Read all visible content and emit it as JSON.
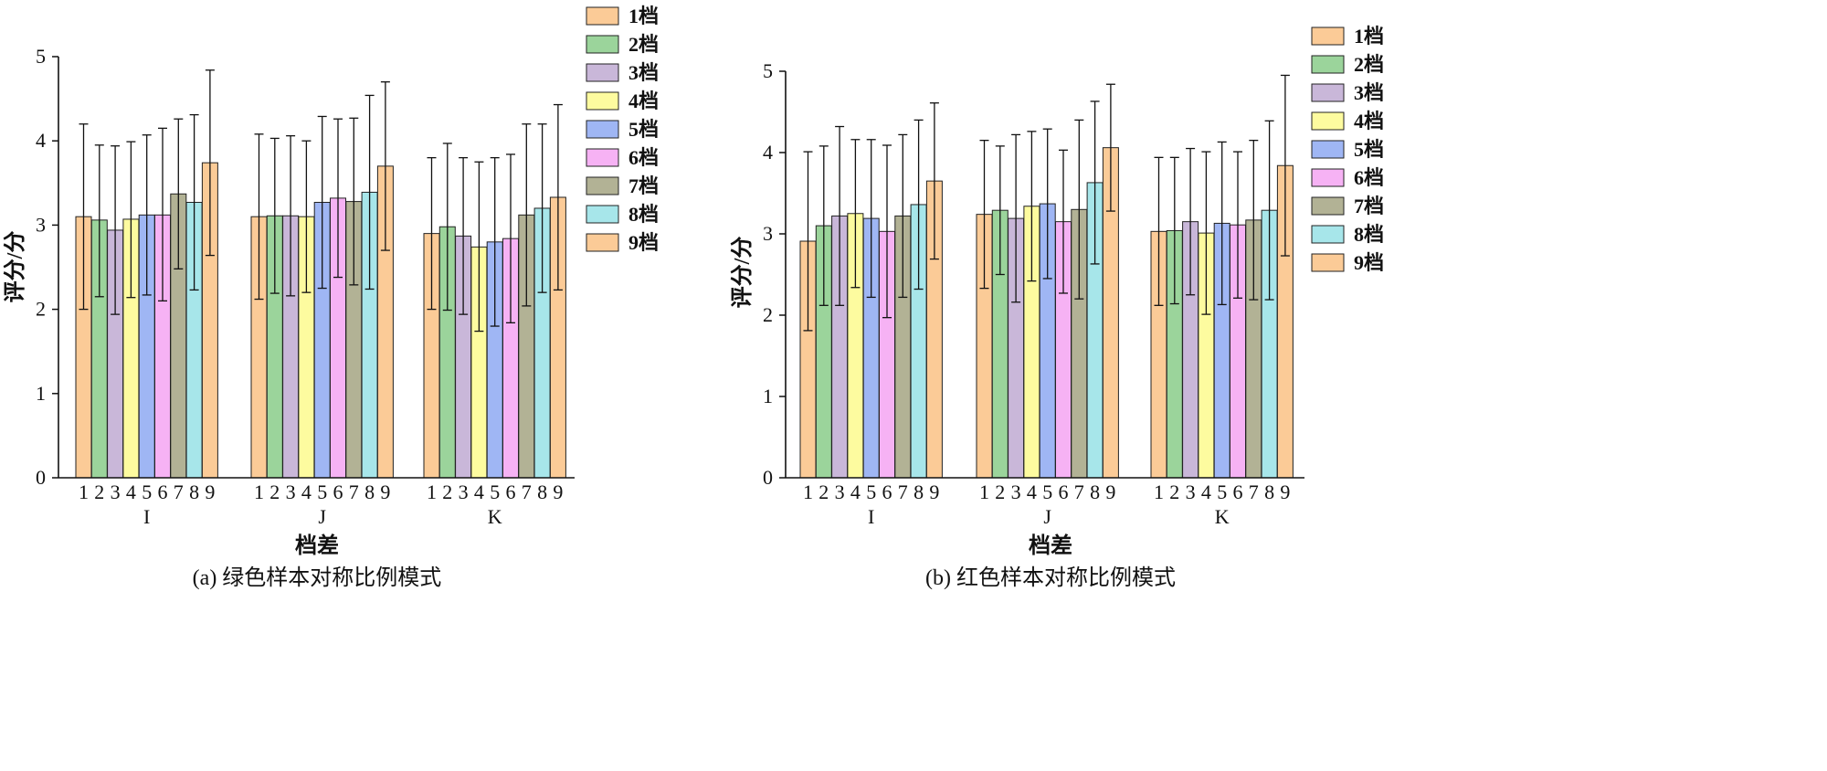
{
  "colors": [
    "#FBCB97",
    "#9BD49B",
    "#C9B7D9",
    "#FDFB9F",
    "#9FB6F4",
    "#F6B2F4",
    "#B2B295",
    "#A7E6EA",
    "#FBCB97"
  ],
  "chart_data": [
    {
      "type": "bar",
      "title": "",
      "caption": "(a)  绿色样本对称比例模式",
      "xlabel": "档差",
      "ylabel": "评分/分",
      "ylim": [
        0,
        5
      ],
      "yticks": [
        "0",
        "1",
        "2",
        "3",
        "4",
        "5"
      ],
      "groups": [
        "I",
        "J",
        "K"
      ],
      "bar_ticks": [
        "1",
        "2",
        "3",
        "4",
        "5",
        "6",
        "7",
        "8",
        "9"
      ],
      "legend_position": "top-right",
      "series": [
        {
          "name": "1档",
          "values": [
            3.1,
            3.1,
            2.9
          ],
          "error_up": [
            1.1,
            0.98,
            0.9
          ],
          "error_down": [
            1.1,
            0.98,
            0.9
          ]
        },
        {
          "name": "2档",
          "values": [
            3.06,
            3.11,
            2.98
          ],
          "error_up": [
            0.89,
            0.92,
            0.99
          ],
          "error_down": [
            0.91,
            0.92,
            0.99
          ]
        },
        {
          "name": "3档",
          "values": [
            2.94,
            3.11,
            2.87
          ],
          "error_up": [
            1.0,
            0.95,
            0.93
          ],
          "error_down": [
            1.0,
            0.95,
            0.93
          ]
        },
        {
          "name": "4档",
          "values": [
            3.07,
            3.1,
            2.74
          ],
          "error_up": [
            0.92,
            0.9,
            1.01
          ],
          "error_down": [
            0.93,
            0.9,
            1.0
          ]
        },
        {
          "name": "5档",
          "values": [
            3.12,
            3.27,
            2.8
          ],
          "error_up": [
            0.95,
            1.02,
            1.0
          ],
          "error_down": [
            0.95,
            1.02,
            1.0
          ]
        },
        {
          "name": "6档",
          "values": [
            3.12,
            3.32,
            2.84
          ],
          "error_up": [
            1.03,
            0.94,
            1.0
          ],
          "error_down": [
            1.02,
            0.94,
            1.0
          ]
        },
        {
          "name": "7档",
          "values": [
            3.37,
            3.28,
            3.12
          ],
          "error_up": [
            0.89,
            0.99,
            1.08
          ],
          "error_down": [
            0.89,
            0.99,
            1.08
          ]
        },
        {
          "name": "8档",
          "values": [
            3.27,
            3.39,
            3.2
          ],
          "error_up": [
            1.04,
            1.15,
            1.0
          ],
          "error_down": [
            1.04,
            1.15,
            1.0
          ]
        },
        {
          "name": "9档",
          "values": [
            3.74,
            3.7,
            3.33
          ],
          "error_up": [
            1.1,
            1.0,
            1.1
          ],
          "error_down": [
            1.1,
            1.0,
            1.1
          ]
        }
      ]
    },
    {
      "type": "bar",
      "title": "",
      "caption": "(b)  红色样本对称比例模式",
      "xlabel": "档差",
      "ylabel": "评分/分",
      "ylim": [
        0,
        5
      ],
      "yticks": [
        "0",
        "1",
        "2",
        "3",
        "4",
        "5"
      ],
      "groups": [
        "I",
        "J",
        "K"
      ],
      "bar_ticks": [
        "1",
        "2",
        "3",
        "4",
        "5",
        "6",
        "7",
        "8",
        "9"
      ],
      "legend_position": "top-right",
      "series": [
        {
          "name": "1档",
          "values": [
            2.91,
            3.24,
            3.03
          ],
          "error_up": [
            1.1,
            0.91,
            0.91
          ],
          "error_down": [
            1.1,
            0.91,
            0.91
          ]
        },
        {
          "name": "2档",
          "values": [
            3.1,
            3.29,
            3.04
          ],
          "error_up": [
            0.98,
            0.79,
            0.9
          ],
          "error_down": [
            0.98,
            0.79,
            0.9
          ]
        },
        {
          "name": "3档",
          "values": [
            3.22,
            3.19,
            3.15
          ],
          "error_up": [
            1.1,
            1.03,
            0.9
          ],
          "error_down": [
            1.1,
            1.03,
            0.9
          ]
        },
        {
          "name": "4档",
          "values": [
            3.25,
            3.34,
            3.01
          ],
          "error_up": [
            0.91,
            0.92,
            1.0
          ],
          "error_down": [
            0.91,
            0.92,
            1.0
          ]
        },
        {
          "name": "5档",
          "values": [
            3.19,
            3.37,
            3.13
          ],
          "error_up": [
            0.97,
            0.92,
            1.0
          ],
          "error_down": [
            0.97,
            0.92,
            1.0
          ]
        },
        {
          "name": "6档",
          "values": [
            3.03,
            3.15,
            3.11
          ],
          "error_up": [
            1.06,
            0.88,
            0.9
          ],
          "error_down": [
            1.06,
            0.88,
            0.9
          ]
        },
        {
          "name": "7档",
          "values": [
            3.22,
            3.3,
            3.17
          ],
          "error_up": [
            1.0,
            1.1,
            0.98
          ],
          "error_down": [
            1.0,
            1.1,
            0.98
          ]
        },
        {
          "name": "8档",
          "values": [
            3.36,
            3.63,
            3.29
          ],
          "error_up": [
            1.04,
            1.0,
            1.1
          ],
          "error_down": [
            1.04,
            1.0,
            1.1
          ]
        },
        {
          "name": "9档",
          "values": [
            3.65,
            4.06,
            3.84
          ],
          "error_up": [
            0.96,
            0.78,
            1.11
          ],
          "error_down": [
            0.96,
            0.78,
            1.11
          ]
        }
      ]
    }
  ]
}
